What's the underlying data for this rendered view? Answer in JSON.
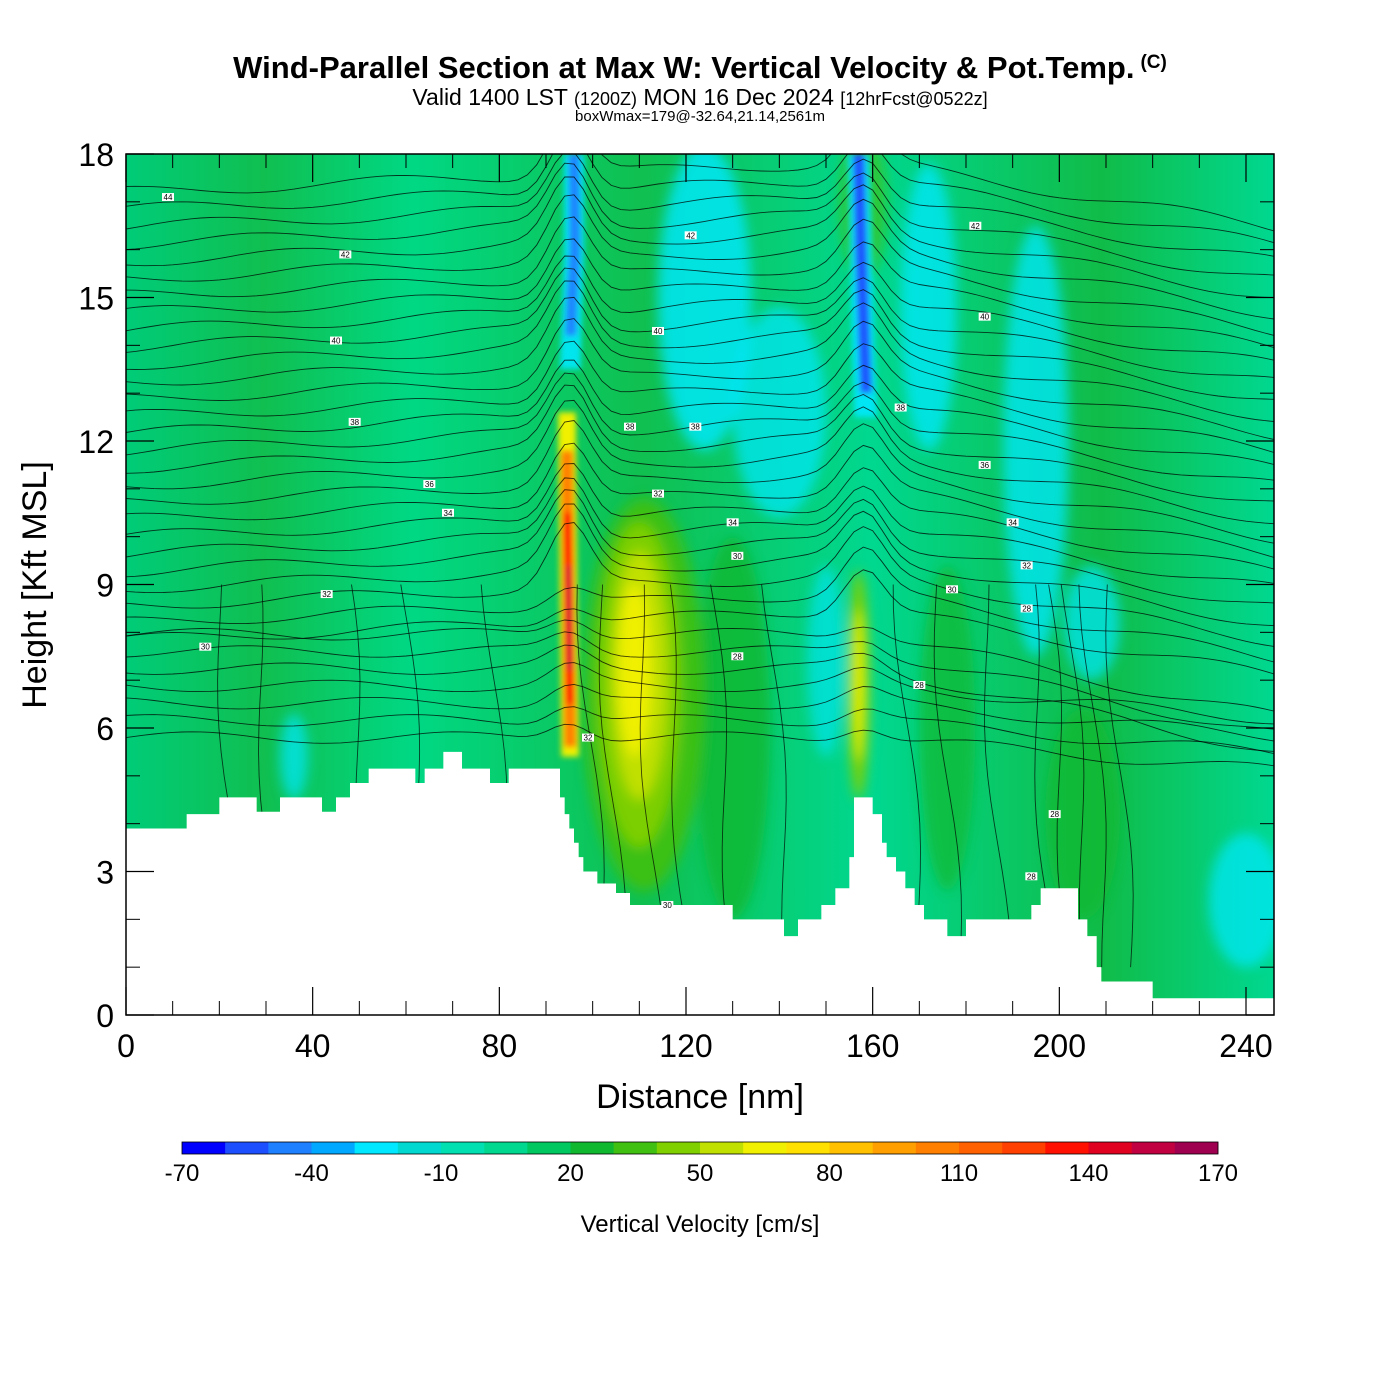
{
  "header": {
    "title": "Wind-Parallel Section at Max W: Vertical Velocity & Pot.Temp.",
    "copyright": "(C)",
    "valid_prefix": "Valid 1400 LST",
    "valid_utc": "(1200Z)",
    "valid_date": "MON 16 Dec 2024",
    "forecast": "[12hrFcst@0522z]",
    "box_wmax": "boxWmax=179@-32.64,21.14,2561m"
  },
  "chart_data": {
    "type": "heatmap",
    "xlabel": "Distance [nm]",
    "ylabel": "Height [Kft MSL]",
    "xlim": [
      0,
      246
    ],
    "ylim": [
      0,
      18
    ],
    "x_ticks": [
      "0",
      "40",
      "80",
      "120",
      "160",
      "200",
      "240"
    ],
    "y_ticks": [
      "0",
      "3",
      "6",
      "9",
      "12",
      "15",
      "18"
    ],
    "grid": false,
    "colorbar": {
      "label": "Vertical Velocity [cm/s]",
      "tick_labels": [
        "-70",
        "-40",
        "-10",
        "20",
        "50",
        "80",
        "110",
        "140",
        "170"
      ],
      "levels": [
        -70,
        -60,
        -50,
        -40,
        -30,
        -20,
        -10,
        0,
        10,
        20,
        30,
        40,
        50,
        60,
        70,
        80,
        90,
        100,
        110,
        120,
        130,
        140,
        150,
        160,
        170
      ],
      "colors": [
        "#0000ff",
        "#1e4fff",
        "#1e7fff",
        "#00a8ff",
        "#00e8ff",
        "#00d8d0",
        "#00e0b0",
        "#00d890",
        "#00c860",
        "#10b830",
        "#40c010",
        "#80d000",
        "#c0e000",
        "#f0f000",
        "#ffe000",
        "#ffc000",
        "#ffa000",
        "#ff8000",
        "#ff6000",
        "#ff4000",
        "#ff1000",
        "#e00020",
        "#c00040",
        "#a00050"
      ]
    },
    "terrain_kft": [
      [
        0,
        3.9
      ],
      [
        12,
        3.9
      ],
      [
        13,
        4.2
      ],
      [
        19,
        4.2
      ],
      [
        20,
        4.55
      ],
      [
        27,
        4.55
      ],
      [
        28,
        4.25
      ],
      [
        32,
        4.25
      ],
      [
        33,
        4.55
      ],
      [
        41,
        4.55
      ],
      [
        42,
        4.25
      ],
      [
        44,
        4.25
      ],
      [
        45,
        4.55
      ],
      [
        47,
        4.55
      ],
      [
        48,
        4.85
      ],
      [
        51,
        4.85
      ],
      [
        52,
        5.15
      ],
      [
        61,
        5.15
      ],
      [
        62,
        4.85
      ],
      [
        63,
        4.85
      ],
      [
        64,
        5.15
      ],
      [
        67,
        5.15
      ],
      [
        68,
        5.5
      ],
      [
        71,
        5.5
      ],
      [
        72,
        5.15
      ],
      [
        77,
        5.15
      ],
      [
        78,
        4.85
      ],
      [
        81,
        4.85
      ],
      [
        82,
        5.15
      ],
      [
        92,
        5.15
      ],
      [
        93,
        4.55
      ],
      [
        94,
        4.2
      ],
      [
        95,
        3.9
      ],
      [
        96,
        3.6
      ],
      [
        97,
        3.3
      ],
      [
        98,
        3.0
      ],
      [
        101,
        2.75
      ],
      [
        105,
        2.55
      ],
      [
        108,
        2.3
      ],
      [
        113,
        2.3
      ],
      [
        116,
        2.3
      ],
      [
        123,
        2.3
      ],
      [
        130,
        2.0
      ],
      [
        140,
        2.0
      ],
      [
        141,
        1.65
      ],
      [
        143,
        1.65
      ],
      [
        144,
        2.0
      ],
      [
        148,
        2.0
      ],
      [
        149,
        2.3
      ],
      [
        151,
        2.3
      ],
      [
        152,
        2.65
      ],
      [
        154,
        2.65
      ],
      [
        155,
        3.3
      ],
      [
        156,
        4.55
      ],
      [
        159,
        4.55
      ],
      [
        160,
        4.2
      ],
      [
        162,
        3.6
      ],
      [
        163,
        3.3
      ],
      [
        165,
        3.0
      ],
      [
        167,
        2.65
      ],
      [
        169,
        2.3
      ],
      [
        171,
        2.0
      ],
      [
        175,
        2.0
      ],
      [
        176,
        1.65
      ],
      [
        179,
        1.65
      ],
      [
        180,
        2.0
      ],
      [
        188,
        2.0
      ],
      [
        193,
        2.0
      ],
      [
        194,
        2.3
      ],
      [
        196,
        2.65
      ],
      [
        203,
        2.65
      ],
      [
        204,
        2.0
      ],
      [
        206,
        1.65
      ],
      [
        208,
        1.0
      ],
      [
        209,
        0.7
      ],
      [
        219,
        0.7
      ],
      [
        220,
        0.35
      ],
      [
        246,
        0.35
      ]
    ],
    "isentrope_labels": [
      {
        "text": "44",
        "x": 9,
        "y": 17.1
      },
      {
        "text": "42",
        "x": 47,
        "y": 15.9
      },
      {
        "text": "42",
        "x": 121,
        "y": 16.3
      },
      {
        "text": "42",
        "x": 182,
        "y": 16.5
      },
      {
        "text": "40",
        "x": 45,
        "y": 14.1
      },
      {
        "text": "40",
        "x": 114,
        "y": 14.3
      },
      {
        "text": "40",
        "x": 184,
        "y": 14.6
      },
      {
        "text": "38",
        "x": 49,
        "y": 12.4
      },
      {
        "text": "38",
        "x": 108,
        "y": 12.3
      },
      {
        "text": "38",
        "x": 122,
        "y": 12.3
      },
      {
        "text": "38",
        "x": 166,
        "y": 12.7
      },
      {
        "text": "36",
        "x": 65,
        "y": 11.1
      },
      {
        "text": "36",
        "x": 184,
        "y": 11.5
      },
      {
        "text": "34",
        "x": 69,
        "y": 10.5
      },
      {
        "text": "32",
        "x": 114,
        "y": 10.9
      },
      {
        "text": "34",
        "x": 130,
        "y": 10.3
      },
      {
        "text": "34",
        "x": 190,
        "y": 10.3
      },
      {
        "text": "32",
        "x": 43,
        "y": 8.8
      },
      {
        "text": "30",
        "x": 131,
        "y": 9.6
      },
      {
        "text": "32",
        "x": 193,
        "y": 9.4
      },
      {
        "text": "30",
        "x": 17,
        "y": 7.7
      },
      {
        "text": "30",
        "x": 177,
        "y": 8.9
      },
      {
        "text": "28",
        "x": 193,
        "y": 8.5
      },
      {
        "text": "28",
        "x": 131,
        "y": 7.5
      },
      {
        "text": "28",
        "x": 170,
        "y": 6.9
      },
      {
        "text": "32",
        "x": 99,
        "y": 5.8
      },
      {
        "text": "28",
        "x": 199,
        "y": 4.2
      },
      {
        "text": "28",
        "x": 194,
        "y": 2.9
      },
      {
        "text": "30",
        "x": 116,
        "y": 2.3
      }
    ]
  }
}
